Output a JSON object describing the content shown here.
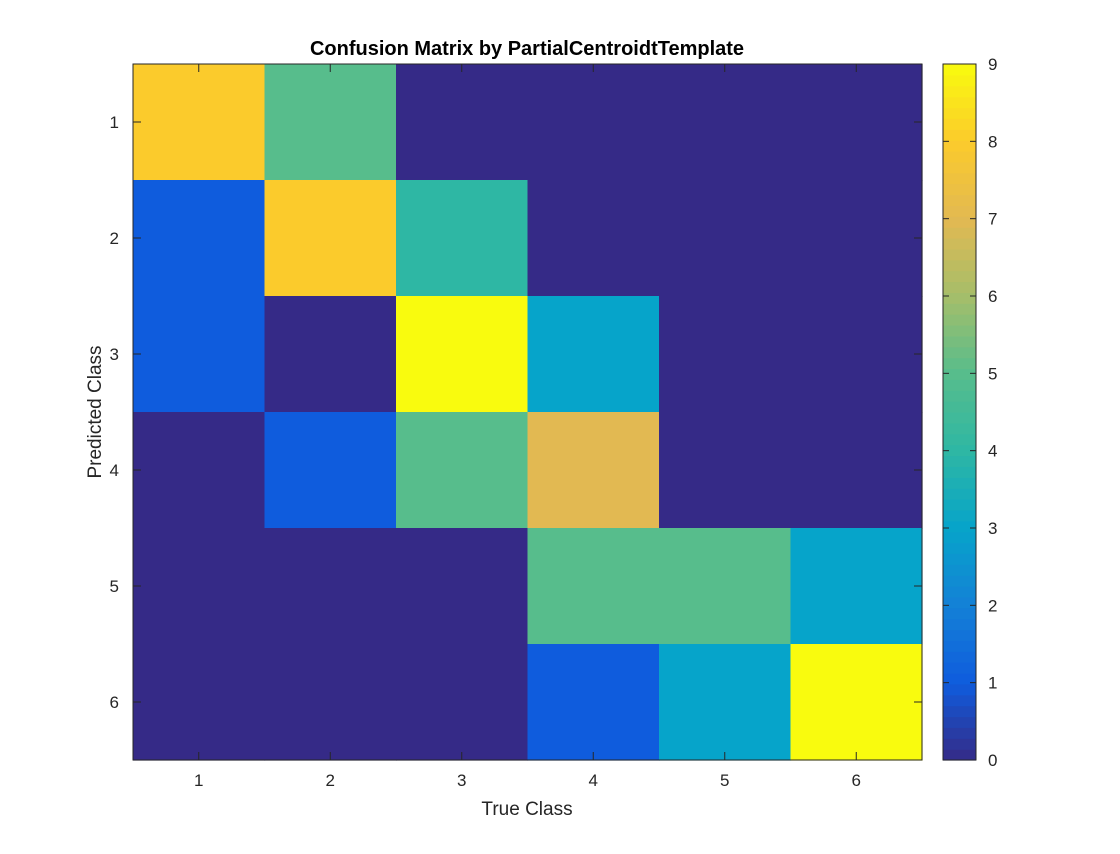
{
  "chart_data": {
    "type": "heatmap",
    "title": "Confusion Matrix by PartialCentroidtTemplate",
    "xlabel": "True Class",
    "ylabel": "Predicted Class",
    "x_categories": [
      "1",
      "2",
      "3",
      "4",
      "5",
      "6"
    ],
    "y_categories": [
      "1",
      "2",
      "3",
      "4",
      "5",
      "6"
    ],
    "values": [
      [
        8,
        5,
        0,
        0,
        0,
        0
      ],
      [
        1,
        8,
        4,
        0,
        0,
        0
      ],
      [
        1,
        0,
        9,
        3,
        0,
        0
      ],
      [
        0,
        1,
        5,
        7,
        0,
        0
      ],
      [
        0,
        0,
        0,
        5,
        5,
        3
      ],
      [
        0,
        0,
        0,
        1,
        3,
        9
      ]
    ],
    "colorbar": {
      "colormap": "parula",
      "range": [
        0,
        9
      ],
      "ticks": [
        "0",
        "1",
        "2",
        "3",
        "4",
        "5",
        "6",
        "7",
        "8",
        "9"
      ]
    }
  }
}
